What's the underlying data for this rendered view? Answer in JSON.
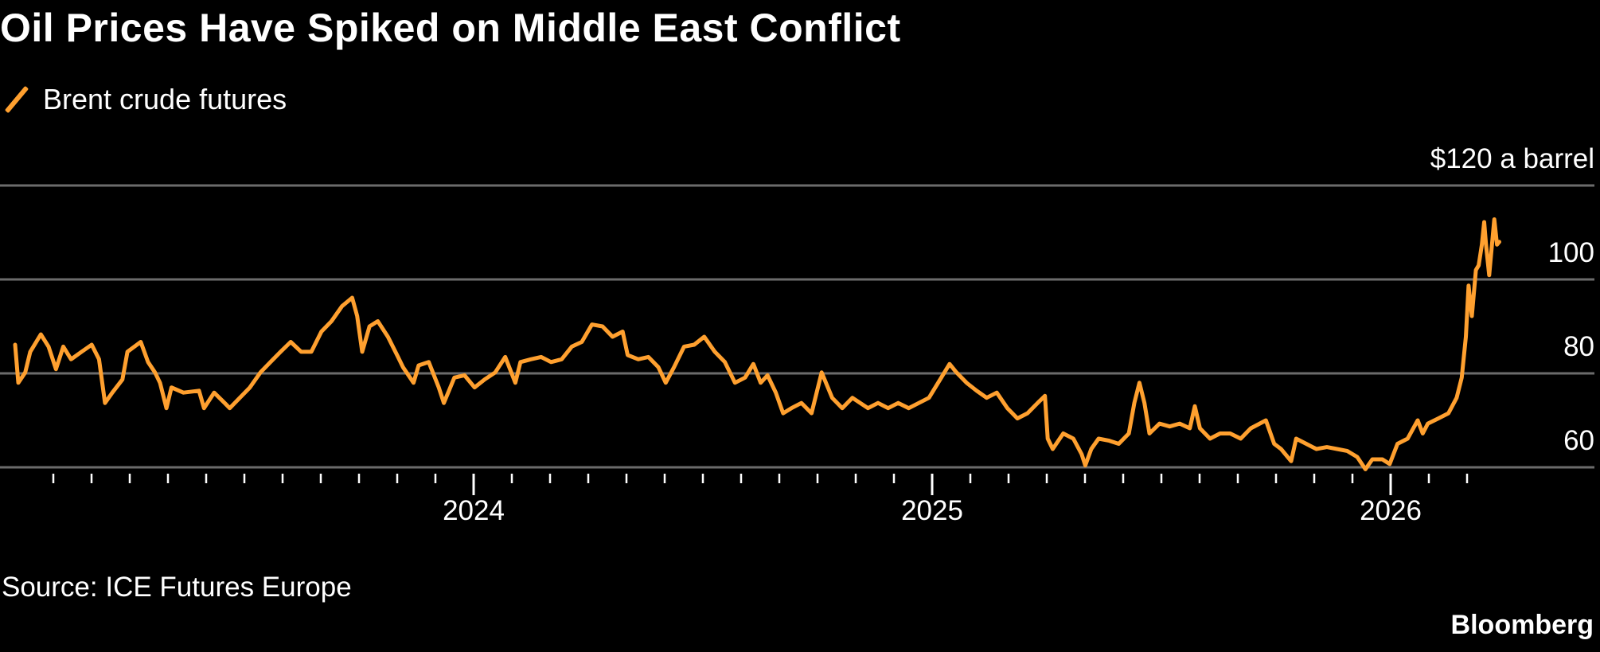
{
  "chart_data": {
    "type": "line",
    "title": "Oil Prices Have Spiked on Middle East Conflict",
    "legend": [
      "Brent crude futures"
    ],
    "legend_placement": "top-left",
    "ylabel_unit": "$120 a barrel",
    "yticks": [
      60,
      80,
      100,
      120
    ],
    "ytick_labels": [
      "60",
      "80",
      "100",
      "$120 a barrel"
    ],
    "ylim": [
      60,
      120
    ],
    "xlim": [
      2023.0,
      2026.24
    ],
    "xtick_labels": [
      {
        "year": 2024,
        "label": "2024"
      },
      {
        "year": 2025,
        "label": "2025"
      },
      {
        "year": 2026,
        "label": "2026"
      }
    ],
    "minor_ticks": "monthly",
    "grid": true,
    "color": "#FFA02F",
    "source": "Source: ICE Futures Europe",
    "brand": "Bloomberg",
    "series": [
      {
        "name": "Brent crude futures",
        "x": [
          2023.0,
          2023.007,
          2023.022,
          2023.033,
          2023.056,
          2023.073,
          2023.089,
          2023.105,
          2023.122,
          2023.145,
          2023.167,
          2023.183,
          2023.196,
          2023.212,
          2023.234,
          2023.245,
          2023.274,
          2023.29,
          2023.305,
          2023.316,
          2023.33,
          2023.341,
          2023.367,
          2023.401,
          2023.412,
          2023.434,
          2023.457,
          2023.468,
          2023.49,
          2023.512,
          2023.535,
          2023.557,
          2023.579,
          2023.601,
          2023.624,
          2023.646,
          2023.668,
          2023.69,
          2023.713,
          2023.735,
          2023.746,
          2023.757,
          2023.773,
          2023.791,
          2023.813,
          2023.835,
          2023.846,
          2023.869,
          2023.88,
          2023.902,
          2023.924,
          2023.935,
          2023.958,
          2023.98,
          2024.002,
          2024.024,
          2024.047,
          2024.069,
          2024.091,
          2024.102,
          2024.125,
          2024.147,
          2024.169,
          2024.192,
          2024.214,
          2024.236,
          2024.258,
          2024.281,
          2024.303,
          2024.325,
          2024.336,
          2024.359,
          2024.381,
          2024.403,
          2024.419,
          2024.437,
          2024.459,
          2024.481,
          2024.503,
          2024.526,
          2024.548,
          2024.57,
          2024.592,
          2024.61,
          2024.626,
          2024.641,
          2024.659,
          2024.675,
          2024.693,
          2024.715,
          2024.737,
          2024.759,
          2024.782,
          2024.804,
          2024.826,
          2024.86,
          2024.882,
          2024.904,
          2024.926,
          2024.949,
          2024.971,
          2024.993,
          2025.02,
          2025.038,
          2025.053,
          2025.075,
          2025.097,
          2025.119,
          2025.141,
          2025.164,
          2025.186,
          2025.208,
          2025.23,
          2025.246,
          2025.252,
          2025.263,
          2025.286,
          2025.308,
          2025.326,
          2025.334,
          2025.347,
          2025.363,
          2025.385,
          2025.407,
          2025.429,
          2025.441,
          2025.452,
          2025.463,
          2025.474,
          2025.496,
          2025.518,
          2025.54,
          2025.562,
          2025.573,
          2025.584,
          2025.606,
          2025.628,
          2025.65,
          2025.673,
          2025.695,
          2025.728,
          2025.746,
          2025.761,
          2025.783,
          2025.794,
          2025.816,
          2025.838,
          2025.861,
          2025.883,
          2025.905,
          2025.927,
          2025.945,
          2025.96,
          2025.982,
          2025.998,
          2026.015,
          2026.037,
          2026.059,
          2026.07,
          2026.081,
          2026.104,
          2026.126,
          2026.144,
          2026.155,
          2026.164,
          2026.17,
          2026.177,
          2026.186,
          2026.192,
          2026.199,
          2026.204,
          2026.208,
          2026.215,
          2026.219,
          2026.226,
          2026.232,
          2026.237
        ],
        "y": [
          86.1,
          78.0,
          80.2,
          84.6,
          88.3,
          85.7,
          80.9,
          85.7,
          83.0,
          84.6,
          86.1,
          83.0,
          73.7,
          75.9,
          78.7,
          84.6,
          86.7,
          82.4,
          80.2,
          78.0,
          72.6,
          77.0,
          75.9,
          76.3,
          72.6,
          75.9,
          73.7,
          72.6,
          74.8,
          77.0,
          80.2,
          82.4,
          84.6,
          86.7,
          84.6,
          84.6,
          88.9,
          91.1,
          94.3,
          96.1,
          92.2,
          84.6,
          90.0,
          91.1,
          87.8,
          83.5,
          81.3,
          78.0,
          81.7,
          82.4,
          77.0,
          73.7,
          79.1,
          79.6,
          77.0,
          78.7,
          80.2,
          83.5,
          78.0,
          82.4,
          83.0,
          83.5,
          82.4,
          83.0,
          85.7,
          86.7,
          90.4,
          90.0,
          87.8,
          88.9,
          83.9,
          83.0,
          83.5,
          81.3,
          78.0,
          81.3,
          85.7,
          86.1,
          87.8,
          84.6,
          82.4,
          78.0,
          79.1,
          82.0,
          78.0,
          79.6,
          75.9,
          71.5,
          72.6,
          73.7,
          71.5,
          80.2,
          74.8,
          72.6,
          74.8,
          72.6,
          73.7,
          72.6,
          73.7,
          72.6,
          73.7,
          74.8,
          79.1,
          82.0,
          80.2,
          78.0,
          76.3,
          74.8,
          75.9,
          72.6,
          70.4,
          71.5,
          73.7,
          75.2,
          66.1,
          63.9,
          67.2,
          66.1,
          62.8,
          60.4,
          63.9,
          66.1,
          65.7,
          65.0,
          67.2,
          73.7,
          78.0,
          73.7,
          67.2,
          69.3,
          68.7,
          69.3,
          68.3,
          73.0,
          68.3,
          66.1,
          67.2,
          67.2,
          66.1,
          68.3,
          70.0,
          65.0,
          63.9,
          61.3,
          66.1,
          65.0,
          63.9,
          64.3,
          63.9,
          63.5,
          62.2,
          59.6,
          61.7,
          61.7,
          60.7,
          65.0,
          66.1,
          70.0,
          67.2,
          69.3,
          70.4,
          71.5,
          74.8,
          79.1,
          87.8,
          98.7,
          92.2,
          102.0,
          103.0,
          107.4,
          112.2,
          107.4,
          100.9,
          105.2,
          112.8,
          107.4,
          108.0
        ]
      }
    ]
  }
}
